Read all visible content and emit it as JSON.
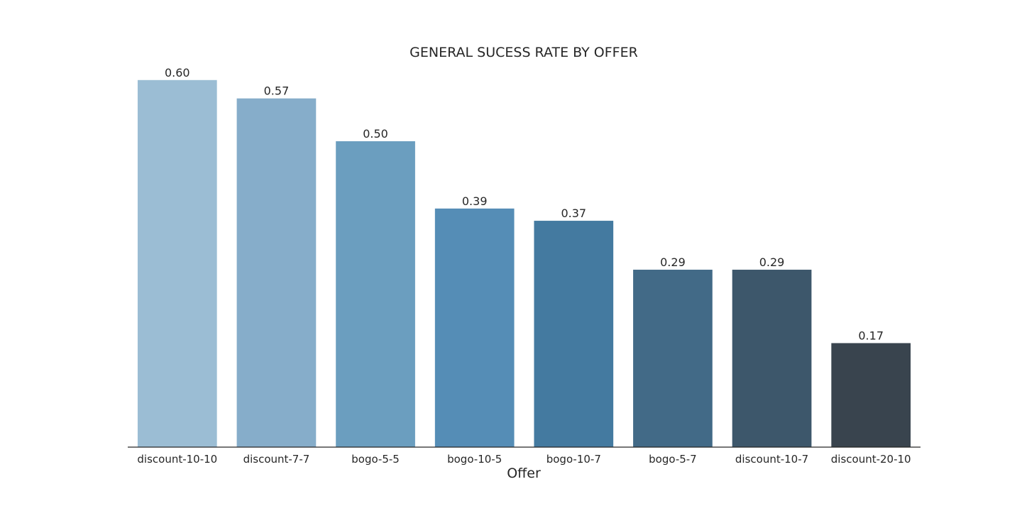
{
  "chart_data": {
    "type": "bar",
    "title": "GENERAL SUCESS RATE BY OFFER",
    "xlabel": "Offer",
    "ylabel": "",
    "categories": [
      "discount-10-10",
      "discount-7-7",
      "bogo-5-5",
      "bogo-10-5",
      "bogo-10-7",
      "bogo-5-7",
      "discount-10-7",
      "discount-20-10"
    ],
    "values": [
      0.6,
      0.57,
      0.5,
      0.39,
      0.37,
      0.29,
      0.29,
      0.17
    ],
    "value_labels": [
      "0.60",
      "0.57",
      "0.50",
      "0.39",
      "0.37",
      "0.29",
      "0.29",
      "0.17"
    ],
    "colors": [
      "#9bbdd4",
      "#86adca",
      "#6b9ebf",
      "#558db6",
      "#447aa0",
      "#426a87",
      "#3d576b",
      "#39444e"
    ],
    "ylim": [
      0,
      0.62
    ],
    "grid": false,
    "legend": "none"
  }
}
